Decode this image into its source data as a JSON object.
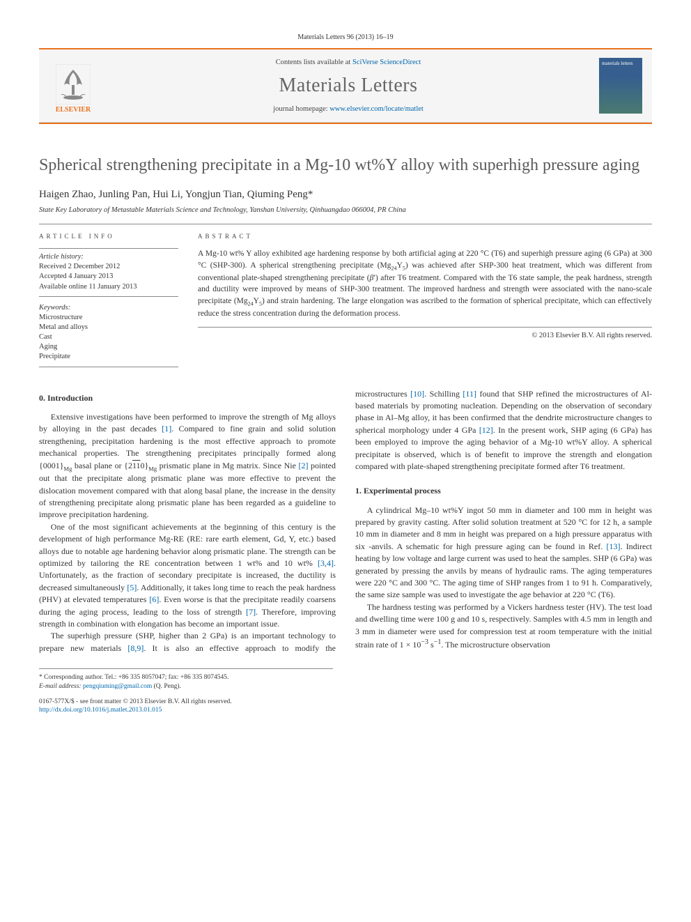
{
  "journal": {
    "header_ref": "Materials Letters 96 (2013) 16–19",
    "contents_prefix": "Contents lists available at ",
    "contents_link": "SciVerse ScienceDirect",
    "name": "Materials Letters",
    "homepage_prefix": "journal homepage: ",
    "homepage_link": "www.elsevier.com/locate/matlet",
    "elsevier": "ELSEVIER",
    "cover_text": "materials letters"
  },
  "article": {
    "title": "Spherical strengthening precipitate in a Mg-10 wt%Y alloy with superhigh pressure aging",
    "authors_pre": "Haigen Zhao, Junling Pan, Hui Li, Yongjun Tian, Qiuming Peng",
    "corr_mark": "*",
    "affiliation": "State Key Laboratory of Metastable Materials Science and Technology, Yanshan University, Qinhuangdao 066004, PR China"
  },
  "info": {
    "label": "ARTICLE INFO",
    "history_label": "Article history:",
    "received": "Received 2 December 2012",
    "accepted": "Accepted 4 January 2013",
    "online": "Available online 11 January 2013",
    "keywords_label": "Keywords:",
    "keywords": [
      "Microstructure",
      "Metal and alloys",
      "Cast",
      "Aging",
      "Precipitate"
    ]
  },
  "abstract": {
    "label": "ABSTRACT",
    "text": "A Mg-10 wt% Y alloy exhibited age hardening response by both artificial aging at 220 °C (T6) and superhigh pressure aging (6 GPa) at 300 °C (SHP-300). A spherical strengthening precipitate (Mg24Y5) was achieved after SHP-300 heat treatment, which was different from conventional plate-shaped strengthening precipitate (β′) after T6 treatment. Compared with the T6 state sample, the peak hardness, strength and ductility were improved by means of SHP-300 treatment. The improved hardness and strength were associated with the nano-scale precipitate (Mg24Y5) and strain hardening. The large elongation was ascribed to the formation of spherical precipitate, which can effectively reduce the stress concentration during the deformation process.",
    "copyright": "© 2013 Elsevier B.V. All rights reserved."
  },
  "body": {
    "section0_heading": "0.  Introduction",
    "p1": "Extensive investigations have been performed to improve the strength of Mg alloys by alloying in the past decades [1]. Compared to fine grain and solid solution strengthening, precipitation hardening is the most effective approach to promote mechanical properties. The strengthening precipitates principally formed along {0001}Mg basal plane or {21̄1̄0}Mg prismatic plane in Mg matrix. Since Nie [2] pointed out that the precipitate along prismatic plane was more effective to prevent the dislocation movement compared with that along basal plane, the increase in the density of strengthening precipitate along prismatic plane has been regarded as a guideline to improve precipitation hardening.",
    "p2": "One of the most significant achievements at the beginning of this century is the development of high performance Mg-RE (RE: rare earth element, Gd, Y, etc.) based alloys due to notable age hardening behavior along prismatic plane. The strength can be optimized by tailoring the RE concentration between 1 wt% and 10 wt% [3,4]. Unfortunately, as the fraction of secondary precipitate is increased, the ductility is decreased simultaneously [5]. Additionally, it takes long time to reach the peak hardness (PHV) at elevated temperatures [6]. Even worse is that the precipitate readily coarsens during the aging process, leading to the loss of strength [7]. Therefore, improving strength in combination with elongation has become an important issue.",
    "p3": "The superhigh pressure (SHP, higher than 2 GPa) is an important technology to prepare new materials [8,9]. It is also an effective approach to modify the microstructures [10]. Schilling [11] found that SHP refined the microstructures of Al-based materials by promoting nucleation. Depending on the observation of secondary phase in Al–Mg alloy, it has been confirmed that the dendrite microstructure changes to spherical morphology under 4 GPa [12]. In the present work, SHP aging (6 GPa) has been employed to improve the aging behavior of a Mg-10 wt%Y alloy. A spherical precipitate is observed, which is of benefit to improve the strength and elongation compared with plate-shaped strengthening precipitate formed after T6 treatment.",
    "section1_heading": "1.  Experimental process",
    "p4": "A cylindrical Mg–10 wt%Y ingot 50 mm in diameter and 100 mm in height was prepared by gravity casting. After solid solution treatment at 520 °C for 12 h, a sample 10 mm in diameter and 8 mm in height was prepared on a high pressure apparatus with six -anvils. A schematic for high pressure aging can be found in Ref. [13]. Indirect heating by low voltage and large current was used to heat the samples. SHP (6 GPa) was generated by pressing the anvils by means of hydraulic rams. The aging temperatures were 220 °C and 300 °C. The aging time of SHP ranges from 1 to 91 h. Comparatively, the same size sample was used to investigate the age behavior at 220 °C (T6).",
    "p5": "The hardness testing was performed by a Vickers hardness tester (HV). The test load and dwelling time were 100 g and 10 s, respectively. Samples with 4.5 mm in length and 3 mm in diameter were used for compression test at room temperature with the initial strain rate of 1 × 10−3 s−1. The microstructure observation"
  },
  "footnotes": {
    "corr": "* Corresponding author. Tel.: +86 335 8057047; fax: +86 335 8074545.",
    "email_label": "E-mail address: ",
    "email": "pengqiuming@gmail.com",
    "email_person": " (Q. Peng).",
    "copyright": "0167-577X/$ - see front matter © 2013 Elsevier B.V. All rights reserved.",
    "doi": "http://dx.doi.org/10.1016/j.matlet.2013.01.015"
  },
  "colors": {
    "accent": "#e9711c",
    "link": "#0066aa",
    "title_gray": "#5a5a5a",
    "journal_gray": "#666666",
    "rule": "#888888"
  }
}
